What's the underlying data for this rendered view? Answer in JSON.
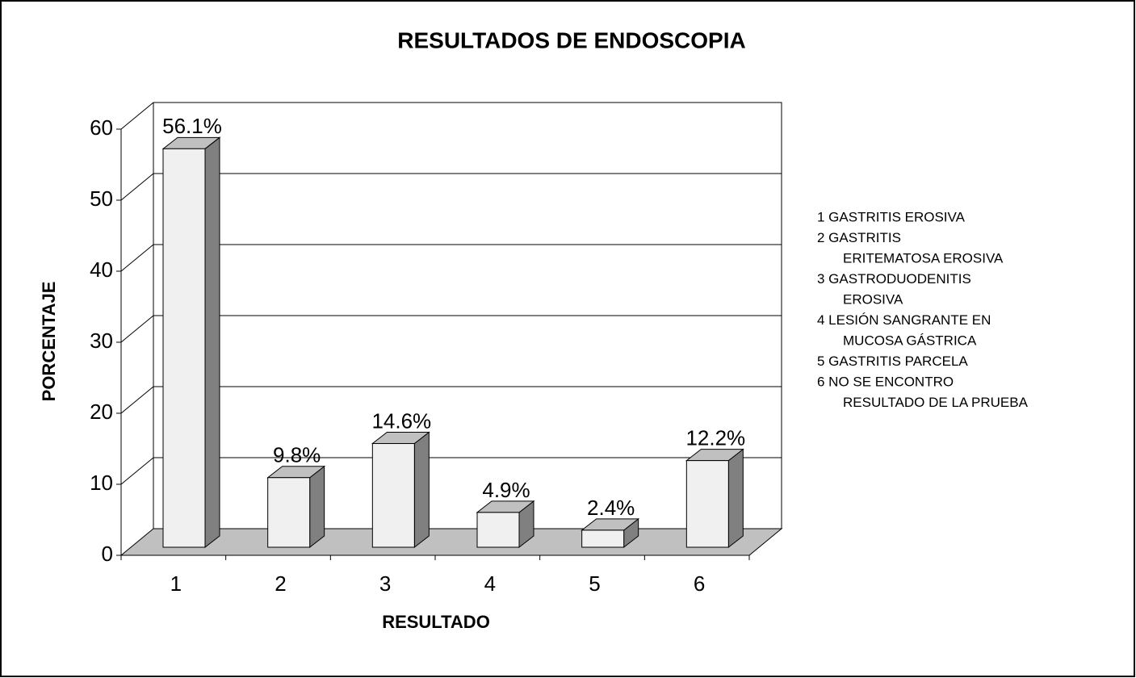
{
  "chart_data": {
    "type": "bar3d",
    "title": "RESULTADOS DE ENDOSCOPIA",
    "x_label": "RESULTADO",
    "y_label": "PORCENTAJE",
    "categories": [
      "1",
      "2",
      "3",
      "4",
      "5",
      "6"
    ],
    "values": [
      56.1,
      9.8,
      14.6,
      4.9,
      2.4,
      12.2
    ],
    "value_labels": [
      "56.1%",
      "9.8%",
      "14.6%",
      "4.9%",
      "2.4%",
      "12.2%"
    ],
    "ylim": [
      0,
      60
    ],
    "yticks": [
      0,
      10,
      20,
      30,
      40,
      50,
      60
    ],
    "grid": true,
    "color": "#f0f0f0",
    "legend_text": [
      [
        "1 GASTRITIS EROSIVA"
      ],
      [
        "2 GASTRITIS",
        "ERITEMATOSA EROSIVA"
      ],
      [
        "3 GASTRODUODENITIS",
        "EROSIVA"
      ],
      [
        "4 LESIÓN SANGRANTE EN",
        "MUCOSA GÁSTRICA"
      ],
      [
        "5 GASTRITIS PARCELA"
      ],
      [
        "6 NO SE ENCONTRO",
        "RESULTADO DE LA PRUEBA"
      ]
    ]
  }
}
